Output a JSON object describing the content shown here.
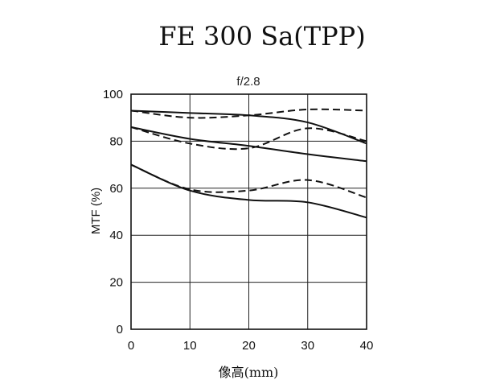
{
  "chart_data": {
    "type": "line",
    "title": "FE 300 Sa(TPP)",
    "subtitle": "f/2.8",
    "xlabel": "像高(mm)",
    "ylabel": "MTF (%)",
    "xlim": [
      0,
      40
    ],
    "ylim": [
      0,
      100
    ],
    "xticks": [
      0,
      10,
      20,
      30,
      40
    ],
    "yticks": [
      0,
      20,
      40,
      60,
      80,
      100
    ],
    "grid": true,
    "series": [
      {
        "style": "solid",
        "x": [
          0,
          10,
          20,
          30,
          40
        ],
        "y": [
          93,
          92,
          91,
          88,
          79
        ]
      },
      {
        "style": "dashed",
        "x": [
          0,
          10,
          20,
          30,
          40
        ],
        "y": [
          93,
          90,
          91,
          93.5,
          93
        ]
      },
      {
        "style": "solid",
        "x": [
          0,
          10,
          20,
          30,
          40
        ],
        "y": [
          86,
          81,
          78,
          74.5,
          71.5
        ]
      },
      {
        "style": "dashed",
        "x": [
          0,
          10,
          20,
          30,
          40
        ],
        "y": [
          86,
          79,
          77,
          85.5,
          80
        ]
      },
      {
        "style": "solid",
        "x": [
          0,
          10,
          20,
          30,
          40
        ],
        "y": [
          70,
          59,
          55,
          54,
          47.5
        ]
      },
      {
        "style": "dashed",
        "x": [
          0,
          10,
          20,
          30,
          40
        ],
        "y": [
          70,
          59.5,
          59,
          63.5,
          56
        ]
      }
    ]
  }
}
